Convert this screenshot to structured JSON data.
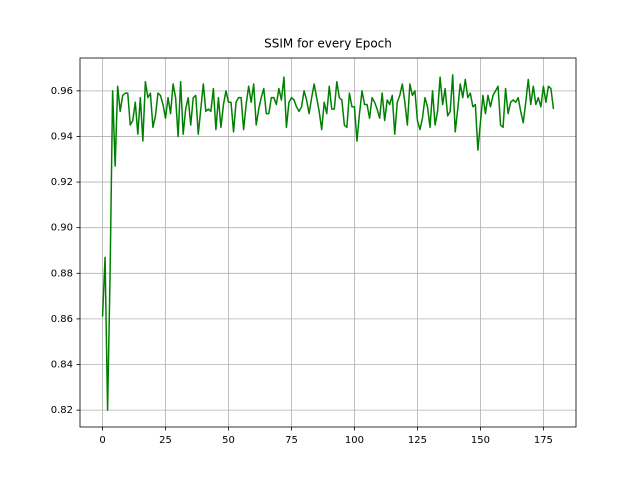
{
  "chart_data": {
    "type": "line",
    "title": "SSIM for every Epoch",
    "color": "#008000",
    "grid": true,
    "x": [
      0,
      1,
      2,
      3,
      4,
      5,
      6,
      7,
      8,
      9,
      10,
      11,
      12,
      13,
      14,
      15,
      16,
      17,
      18,
      19,
      20,
      21,
      22,
      23,
      24,
      25,
      26,
      27,
      28,
      29,
      30,
      31,
      32,
      33,
      34,
      35,
      36,
      37,
      38,
      39,
      40,
      41,
      42,
      43,
      44,
      45,
      46,
      47,
      48,
      49,
      50,
      51,
      52,
      53,
      54,
      55,
      56,
      57,
      58,
      59,
      60,
      61,
      62,
      63,
      64,
      65,
      66,
      67,
      68,
      69,
      70,
      71,
      72,
      73,
      74,
      75,
      76,
      77,
      78,
      79,
      80,
      81,
      82,
      83,
      84,
      85,
      86,
      87,
      88,
      89,
      90,
      91,
      92,
      93,
      94,
      95,
      96,
      97,
      98,
      99,
      100,
      101,
      102,
      103,
      104,
      105,
      106,
      107,
      108,
      109,
      110,
      111,
      112,
      113,
      114,
      115,
      116,
      117,
      118,
      119,
      120,
      121,
      122,
      123,
      124,
      125,
      126,
      127,
      128,
      129,
      130,
      131,
      132,
      133,
      134,
      135,
      136,
      137,
      138,
      139,
      140,
      141,
      142,
      143,
      144,
      145,
      146,
      147,
      148,
      149,
      150,
      151,
      152,
      153,
      154,
      155,
      156,
      157,
      158,
      159,
      160,
      161,
      162,
      163,
      164,
      165,
      166,
      167,
      168,
      169,
      170,
      171,
      172,
      173,
      174,
      175,
      176,
      177,
      178,
      179
    ],
    "values": [
      0.861,
      0.887,
      0.82,
      0.88,
      0.96,
      0.927,
      0.962,
      0.951,
      0.958,
      0.959,
      0.959,
      0.945,
      0.947,
      0.955,
      0.941,
      0.957,
      0.938,
      0.964,
      0.957,
      0.959,
      0.944,
      0.949,
      0.959,
      0.958,
      0.954,
      0.948,
      0.957,
      0.95,
      0.963,
      0.957,
      0.94,
      0.964,
      0.941,
      0.952,
      0.957,
      0.945,
      0.957,
      0.958,
      0.941,
      0.952,
      0.963,
      0.951,
      0.952,
      0.951,
      0.961,
      0.943,
      0.957,
      0.944,
      0.954,
      0.96,
      0.955,
      0.955,
      0.942,
      0.955,
      0.957,
      0.957,
      0.943,
      0.954,
      0.962,
      0.955,
      0.963,
      0.945,
      0.952,
      0.957,
      0.961,
      0.95,
      0.95,
      0.957,
      0.957,
      0.954,
      0.961,
      0.956,
      0.966,
      0.944,
      0.955,
      0.957,
      0.956,
      0.953,
      0.951,
      0.953,
      0.96,
      0.956,
      0.95,
      0.957,
      0.963,
      0.957,
      0.951,
      0.943,
      0.955,
      0.95,
      0.962,
      0.952,
      0.952,
      0.964,
      0.957,
      0.956,
      0.945,
      0.944,
      0.959,
      0.953,
      0.953,
      0.938,
      0.95,
      0.96,
      0.954,
      0.954,
      0.948,
      0.957,
      0.955,
      0.952,
      0.948,
      0.959,
      0.947,
      0.956,
      0.954,
      0.958,
      0.941,
      0.955,
      0.958,
      0.963,
      0.955,
      0.945,
      0.963,
      0.958,
      0.96,
      0.947,
      0.943,
      0.948,
      0.957,
      0.953,
      0.944,
      0.96,
      0.945,
      0.951,
      0.966,
      0.954,
      0.961,
      0.949,
      0.951,
      0.967,
      0.942,
      0.952,
      0.963,
      0.957,
      0.965,
      0.957,
      0.959,
      0.953,
      0.954,
      0.934,
      0.946,
      0.958,
      0.95,
      0.958,
      0.953,
      0.958,
      0.96,
      0.962,
      0.945,
      0.944,
      0.961,
      0.95,
      0.955,
      0.956,
      0.955,
      0.957,
      0.951,
      0.946,
      0.955,
      0.965,
      0.954,
      0.962,
      0.954,
      0.957,
      0.953,
      0.962,
      0.955,
      0.962,
      0.961,
      0.952
    ],
    "xlim": [
      -8.95,
      187.95
    ],
    "xticks": [
      0,
      25,
      50,
      75,
      100,
      125,
      150,
      175
    ],
    "ylim": [
      0.8126,
      0.9744
    ],
    "yticks": [
      0.82,
      0.84,
      0.86,
      0.88,
      {
        "value": 0.9,
        "label": "0.90"
      },
      0.92,
      0.94,
      0.96
    ]
  }
}
